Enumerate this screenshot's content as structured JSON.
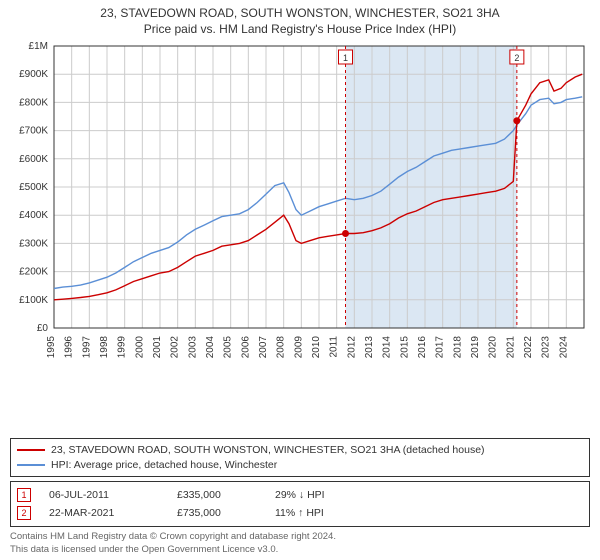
{
  "title": "23, STAVEDOWN ROAD, SOUTH WONSTON, WINCHESTER, SO21 3HA",
  "subtitle": "Price paid vs. HM Land Registry's House Price Index (HPI)",
  "chart": {
    "type": "line",
    "background_color": "#ffffff",
    "grid_color": "#cccccc",
    "shade_color": "#dbe7f3",
    "shade_x_start": 2011.5,
    "shade_x_end": 2021.2,
    "xlim": [
      1995,
      2025
    ],
    "ylim": [
      0,
      1000000
    ],
    "y_ticks": [
      0,
      100000,
      200000,
      300000,
      400000,
      500000,
      600000,
      700000,
      800000,
      900000,
      1000000
    ],
    "y_tick_labels": [
      "£0",
      "£100K",
      "£200K",
      "£300K",
      "£400K",
      "£500K",
      "£600K",
      "£700K",
      "£800K",
      "£900K",
      "£1M"
    ],
    "x_ticks": [
      1995,
      1996,
      1997,
      1998,
      1999,
      2000,
      2001,
      2002,
      2003,
      2004,
      2005,
      2006,
      2007,
      2008,
      2009,
      2010,
      2011,
      2012,
      2013,
      2014,
      2015,
      2016,
      2017,
      2018,
      2019,
      2020,
      2021,
      2022,
      2023,
      2024
    ],
    "series": [
      {
        "name": "23, STAVEDOWN ROAD, SOUTH WONSTON, WINCHESTER, SO21 3HA (detached house)",
        "color": "#cc0000",
        "width": 1.4,
        "data": [
          [
            1995,
            100000
          ],
          [
            1995.5,
            102000
          ],
          [
            1996,
            105000
          ],
          [
            1996.5,
            108000
          ],
          [
            1997,
            112000
          ],
          [
            1997.5,
            118000
          ],
          [
            1998,
            125000
          ],
          [
            1998.5,
            135000
          ],
          [
            1999,
            150000
          ],
          [
            1999.5,
            165000
          ],
          [
            2000,
            175000
          ],
          [
            2000.5,
            185000
          ],
          [
            2001,
            195000
          ],
          [
            2001.5,
            200000
          ],
          [
            2002,
            215000
          ],
          [
            2002.5,
            235000
          ],
          [
            2003,
            255000
          ],
          [
            2003.5,
            265000
          ],
          [
            2004,
            275000
          ],
          [
            2004.5,
            290000
          ],
          [
            2005,
            295000
          ],
          [
            2005.5,
            300000
          ],
          [
            2006,
            310000
          ],
          [
            2006.5,
            330000
          ],
          [
            2007,
            350000
          ],
          [
            2007.5,
            375000
          ],
          [
            2008,
            400000
          ],
          [
            2008.3,
            370000
          ],
          [
            2008.7,
            310000
          ],
          [
            2009,
            300000
          ],
          [
            2009.5,
            310000
          ],
          [
            2010,
            320000
          ],
          [
            2010.5,
            325000
          ],
          [
            2011,
            330000
          ],
          [
            2011.5,
            335000
          ],
          [
            2012,
            335000
          ],
          [
            2012.5,
            338000
          ],
          [
            2013,
            345000
          ],
          [
            2013.5,
            355000
          ],
          [
            2014,
            370000
          ],
          [
            2014.5,
            390000
          ],
          [
            2015,
            405000
          ],
          [
            2015.5,
            415000
          ],
          [
            2016,
            430000
          ],
          [
            2016.5,
            445000
          ],
          [
            2017,
            455000
          ],
          [
            2017.5,
            460000
          ],
          [
            2018,
            465000
          ],
          [
            2018.5,
            470000
          ],
          [
            2019,
            475000
          ],
          [
            2019.5,
            480000
          ],
          [
            2020,
            485000
          ],
          [
            2020.5,
            495000
          ],
          [
            2021,
            520000
          ],
          [
            2021.2,
            735000
          ],
          [
            2021.7,
            790000
          ],
          [
            2022,
            830000
          ],
          [
            2022.5,
            870000
          ],
          [
            2023,
            880000
          ],
          [
            2023.3,
            840000
          ],
          [
            2023.7,
            850000
          ],
          [
            2024,
            870000
          ],
          [
            2024.5,
            890000
          ],
          [
            2024.9,
            900000
          ]
        ]
      },
      {
        "name": "HPI: Average price, detached house, Winchester",
        "color": "#5b8fd6",
        "width": 1.4,
        "data": [
          [
            1995,
            140000
          ],
          [
            1995.5,
            145000
          ],
          [
            1996,
            148000
          ],
          [
            1996.5,
            152000
          ],
          [
            1997,
            160000
          ],
          [
            1997.5,
            170000
          ],
          [
            1998,
            180000
          ],
          [
            1998.5,
            195000
          ],
          [
            1999,
            215000
          ],
          [
            1999.5,
            235000
          ],
          [
            2000,
            250000
          ],
          [
            2000.5,
            265000
          ],
          [
            2001,
            275000
          ],
          [
            2001.5,
            285000
          ],
          [
            2002,
            305000
          ],
          [
            2002.5,
            330000
          ],
          [
            2003,
            350000
          ],
          [
            2003.5,
            365000
          ],
          [
            2004,
            380000
          ],
          [
            2004.5,
            395000
          ],
          [
            2005,
            400000
          ],
          [
            2005.5,
            405000
          ],
          [
            2006,
            420000
          ],
          [
            2006.5,
            445000
          ],
          [
            2007,
            475000
          ],
          [
            2007.5,
            505000
          ],
          [
            2008,
            515000
          ],
          [
            2008.3,
            480000
          ],
          [
            2008.7,
            420000
          ],
          [
            2009,
            400000
          ],
          [
            2009.5,
            415000
          ],
          [
            2010,
            430000
          ],
          [
            2010.5,
            440000
          ],
          [
            2011,
            450000
          ],
          [
            2011.5,
            460000
          ],
          [
            2012,
            455000
          ],
          [
            2012.5,
            460000
          ],
          [
            2013,
            470000
          ],
          [
            2013.5,
            485000
          ],
          [
            2014,
            510000
          ],
          [
            2014.5,
            535000
          ],
          [
            2015,
            555000
          ],
          [
            2015.5,
            570000
          ],
          [
            2016,
            590000
          ],
          [
            2016.5,
            610000
          ],
          [
            2017,
            620000
          ],
          [
            2017.5,
            630000
          ],
          [
            2018,
            635000
          ],
          [
            2018.5,
            640000
          ],
          [
            2019,
            645000
          ],
          [
            2019.5,
            650000
          ],
          [
            2020,
            655000
          ],
          [
            2020.5,
            670000
          ],
          [
            2021,
            700000
          ],
          [
            2021.2,
            720000
          ],
          [
            2021.7,
            760000
          ],
          [
            2022,
            790000
          ],
          [
            2022.5,
            810000
          ],
          [
            2023,
            815000
          ],
          [
            2023.3,
            795000
          ],
          [
            2023.7,
            800000
          ],
          [
            2024,
            810000
          ],
          [
            2024.5,
            815000
          ],
          [
            2024.9,
            820000
          ]
        ]
      }
    ],
    "markers": [
      {
        "n": "1",
        "x": 2011.5,
        "y": 335000,
        "color": "#cc0000",
        "date": "06-JUL-2011",
        "price": "£335,000",
        "pct": "29% ↓ HPI"
      },
      {
        "n": "2",
        "x": 2021.2,
        "y": 735000,
        "color": "#cc0000",
        "date": "22-MAR-2021",
        "price": "£735,000",
        "pct": "11% ↑ HPI"
      }
    ]
  },
  "footer": {
    "line1": "Contains HM Land Registry data © Crown copyright and database right 2024.",
    "line2": "This data is licensed under the Open Government Licence v3.0."
  }
}
